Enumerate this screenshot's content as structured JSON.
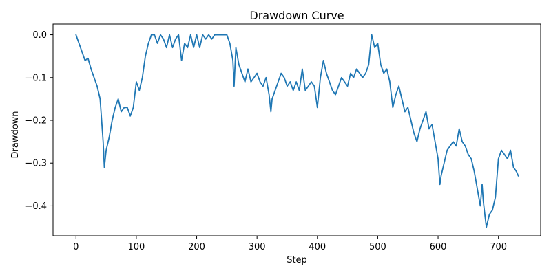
{
  "chart_data": {
    "type": "line",
    "title": "Drawdown Curve",
    "xlabel": "Step",
    "ylabel": "Drawdown",
    "xlim": [
      -38,
      770
    ],
    "ylim": [
      -0.47,
      0.025
    ],
    "grid": false,
    "legend": "none",
    "line_color": "#1f77b4",
    "x_ticks": [
      0,
      100,
      200,
      300,
      400,
      500,
      600,
      700
    ],
    "x_tick_labels": [
      "0",
      "100",
      "200",
      "300",
      "400",
      "500",
      "600",
      "700"
    ],
    "y_ticks": [
      0.0,
      -0.1,
      -0.2,
      -0.3,
      -0.4
    ],
    "y_tick_labels": [
      "0.0",
      "−0.1",
      "−0.2",
      "−0.3",
      "−0.4"
    ],
    "series": [
      {
        "x": [
          0,
          5,
          10,
          15,
          20,
          25,
          30,
          35,
          40,
          45,
          47,
          50,
          55,
          60,
          65,
          70,
          75,
          80,
          85,
          90,
          95,
          100,
          105,
          110,
          115,
          120,
          125,
          130,
          135,
          140,
          145,
          150,
          155,
          160,
          165,
          170,
          175,
          180,
          185,
          190,
          195,
          200,
          205,
          210,
          215,
          220,
          225,
          230,
          235,
          240,
          245,
          250,
          255,
          260,
          262,
          265,
          270,
          275,
          280,
          285,
          290,
          295,
          300,
          305,
          310,
          315,
          320,
          323,
          325,
          330,
          335,
          340,
          345,
          350,
          355,
          360,
          365,
          370,
          375,
          380,
          385,
          390,
          395,
          400,
          405,
          410,
          415,
          420,
          425,
          430,
          435,
          440,
          445,
          450,
          455,
          460,
          465,
          470,
          475,
          480,
          485,
          490,
          495,
          500,
          505,
          510,
          515,
          520,
          525,
          530,
          535,
          540,
          545,
          550,
          555,
          560,
          565,
          570,
          575,
          580,
          585,
          590,
          595,
          600,
          603,
          605,
          610,
          615,
          620,
          625,
          630,
          635,
          640,
          645,
          650,
          655,
          660,
          665,
          670,
          673,
          675,
          680,
          685,
          690,
          695,
          700,
          705,
          710,
          715,
          720,
          725,
          730,
          733
        ],
        "y": [
          0.0,
          -0.02,
          -0.04,
          -0.06,
          -0.055,
          -0.08,
          -0.1,
          -0.12,
          -0.15,
          -0.25,
          -0.31,
          -0.27,
          -0.24,
          -0.2,
          -0.17,
          -0.15,
          -0.18,
          -0.17,
          -0.17,
          -0.19,
          -0.17,
          -0.11,
          -0.13,
          -0.1,
          -0.05,
          -0.02,
          0.0,
          0.0,
          -0.02,
          0.0,
          -0.01,
          -0.03,
          0.0,
          -0.03,
          -0.01,
          0.0,
          -0.06,
          -0.02,
          -0.03,
          0.0,
          -0.03,
          0.0,
          -0.03,
          0.0,
          -0.01,
          0.0,
          -0.01,
          0.0,
          0.0,
          0.0,
          0.0,
          0.0,
          -0.02,
          -0.06,
          -0.12,
          -0.03,
          -0.07,
          -0.09,
          -0.11,
          -0.08,
          -0.11,
          -0.1,
          -0.09,
          -0.11,
          -0.12,
          -0.1,
          -0.14,
          -0.18,
          -0.15,
          -0.13,
          -0.11,
          -0.09,
          -0.1,
          -0.12,
          -0.11,
          -0.13,
          -0.11,
          -0.13,
          -0.08,
          -0.13,
          -0.12,
          -0.11,
          -0.12,
          -0.17,
          -0.1,
          -0.06,
          -0.09,
          -0.11,
          -0.13,
          -0.14,
          -0.12,
          -0.1,
          -0.11,
          -0.12,
          -0.09,
          -0.1,
          -0.08,
          -0.09,
          -0.1,
          -0.09,
          -0.07,
          0.0,
          -0.03,
          -0.02,
          -0.07,
          -0.09,
          -0.08,
          -0.11,
          -0.17,
          -0.14,
          -0.12,
          -0.15,
          -0.18,
          -0.17,
          -0.2,
          -0.23,
          -0.25,
          -0.22,
          -0.2,
          -0.18,
          -0.22,
          -0.21,
          -0.25,
          -0.29,
          -0.35,
          -0.33,
          -0.3,
          -0.27,
          -0.26,
          -0.25,
          -0.26,
          -0.22,
          -0.25,
          -0.26,
          -0.28,
          -0.29,
          -0.32,
          -0.36,
          -0.4,
          -0.35,
          -0.39,
          -0.45,
          -0.42,
          -0.41,
          -0.38,
          -0.29,
          -0.27,
          -0.28,
          -0.29,
          -0.27,
          -0.31,
          -0.32,
          -0.33
        ]
      }
    ]
  }
}
